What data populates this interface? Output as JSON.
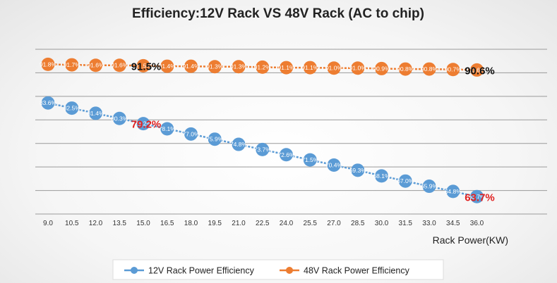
{
  "chart_data": {
    "type": "line",
    "title": "Efficiency:12V Rack VS 48V Rack (AC to chip)",
    "xlabel": "Rack Power(KW)",
    "ylabel": "",
    "categories": [
      "9.0",
      "10.5",
      "12.0",
      "13.5",
      "15.0",
      "16.5",
      "18.0",
      "19.5",
      "21.0",
      "22.5",
      "24.0",
      "25.5",
      "27.0",
      "28.5",
      "30.0",
      "31.5",
      "33.0",
      "34.5",
      "36.0"
    ],
    "ylim": [
      60,
      95
    ],
    "grid": true,
    "legend": "bottom",
    "series": [
      {
        "name": "12V Rack Power Efficiency",
        "color": "#5b9bd5",
        "values": [
          83.6,
          82.5,
          81.4,
          80.3,
          79.2,
          78.1,
          77.0,
          75.9,
          74.8,
          73.7,
          72.6,
          71.5,
          70.4,
          69.3,
          68.1,
          67.0,
          65.9,
          64.8,
          63.7
        ],
        "labels": [
          "83.6%",
          "82.5%",
          "81.4%",
          "80.3%",
          "79.2%",
          "78.1%",
          "77.0%",
          "75.9%",
          "74.8%",
          "73.7%",
          "72.6%",
          "71.5%",
          "70.4%",
          "69.3%",
          "68.1%",
          "67.0%",
          "65.9%",
          "64.8%",
          "63.7%"
        ]
      },
      {
        "name": "48V Rack Power Efficiency",
        "color": "#ed7d31",
        "values": [
          91.8,
          91.7,
          91.6,
          91.6,
          91.5,
          91.4,
          91.4,
          91.3,
          91.3,
          91.2,
          91.1,
          91.1,
          91.0,
          91.0,
          90.9,
          90.8,
          90.8,
          90.7,
          90.6
        ],
        "labels": [
          "91.8%",
          "91.7%",
          "91.6%",
          "91.6%",
          "91.5%",
          "91.4%",
          "91.4%",
          "91.3%",
          "91.3%",
          "91.2%",
          "91.1%",
          "91.1%",
          "91.0%",
          "91.0%",
          "90.9%",
          "90.8%",
          "90.8%",
          "90.7%",
          "90.6%"
        ]
      }
    ],
    "callouts": [
      {
        "text": "91.5%",
        "series": 1,
        "index": 4,
        "color": "#111111"
      },
      {
        "text": "90.6%",
        "series": 1,
        "index": 18,
        "color": "#111111"
      },
      {
        "text": "79.2%",
        "series": 0,
        "index": 4,
        "color": "#e02020"
      },
      {
        "text": "63.7%",
        "series": 0,
        "index": 18,
        "color": "#e02020"
      }
    ]
  }
}
